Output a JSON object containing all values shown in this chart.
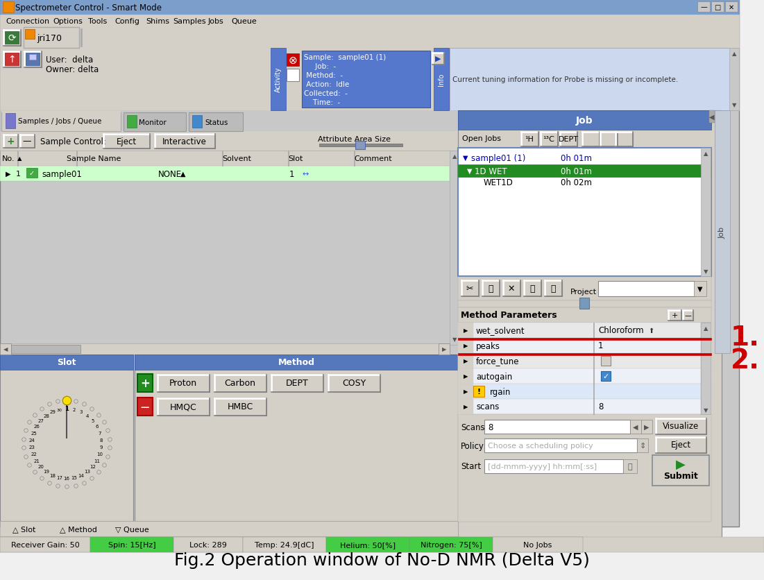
{
  "title_text": "Fig.2 Operation window of No-D NMR (Delta V5)",
  "title_fontsize": 18,
  "fig_bg": "#f0f0f0",
  "window_bg": "#d4d0c8",
  "title_bar_bg": "#a0a0c0",
  "title_bar_text": "Spectrometer Control - Smart Mode",
  "title_bar_color": "#000000",
  "menu_items": [
    "Connection",
    "Options",
    "Tools",
    "Config",
    "Shims",
    "Samples",
    "Jobs",
    "Queue"
  ],
  "status_bar_items": [
    {
      "text": "Receiver Gain: 50",
      "bg": "#d4d0c8",
      "fg": "#000000"
    },
    {
      "text": "Spin: 15[Hz]",
      "bg": "#44cc44",
      "fg": "#000000"
    },
    {
      "text": "Lock: 289",
      "bg": "#d4d0c8",
      "fg": "#000000"
    },
    {
      "text": "Temp: 24.9[dC]",
      "bg": "#d4d0c8",
      "fg": "#000000"
    },
    {
      "text": "Helium: 50[%]",
      "bg": "#44cc44",
      "fg": "#000000"
    },
    {
      "text": "Nitrogen: 75[%]",
      "bg": "#44cc44",
      "fg": "#000000"
    },
    {
      "text": "No Jobs",
      "bg": "#d4d0c8",
      "fg": "#000000"
    }
  ],
  "tabs": [
    "Samples / Jobs / Queue",
    "Monitor",
    "Status"
  ],
  "job_panel_title": "Job",
  "job_panel_bg": "#5588cc",
  "method_panel_title": "Method",
  "method_panel_bg": "#5588cc",
  "slot_panel_title": "Slot",
  "slot_panel_bg": "#5588cc",
  "sample_name": "sample01",
  "sample_slot": "1",
  "sample_solvent": "NONE",
  "method_params": [
    {
      "name": "wet_solvent",
      "value": "Chloroform",
      "has_arrow": true,
      "warning": false,
      "red_below": true
    },
    {
      "name": "peaks",
      "value": "1",
      "has_arrow": false,
      "warning": false,
      "red_below": true
    },
    {
      "name": "force_tune",
      "value": "checkbox_empty",
      "has_arrow": false,
      "warning": false,
      "red_below": false
    },
    {
      "name": "autogain",
      "value": "checkbox_checked",
      "has_arrow": false,
      "warning": false,
      "red_below": false
    },
    {
      "name": "rgain",
      "value": "",
      "has_arrow": false,
      "warning": true,
      "red_below": false
    },
    {
      "name": "scans",
      "value": "8",
      "has_arrow": false,
      "warning": false,
      "red_below": false
    }
  ],
  "info_text": "Current tuning information for Probe is missing or incomplete.",
  "user_text": "User:  delta\nOwner: delta",
  "sample_info_lines": [
    "Sample:  sample01 (1)",
    "     Job:  -",
    " Method:  -",
    " Action:  Idle",
    "Collected:  -",
    "    Time:  -"
  ],
  "scans_value": "8",
  "policy_placeholder": "Choose a scheduling policy",
  "start_placeholder": "[dd-mmm-yyyy] hh:mm[:ss]",
  "annotation_1": "1.",
  "annotation_2": "2.",
  "annotation_color": "#cc0000",
  "red_line_color": "#cc0000",
  "panel_blue": "#5577bb",
  "light_blue_bg": "#b8c8e0",
  "white": "#ffffff",
  "gray_bg": "#d4d0c8",
  "green_sel": "#228B22",
  "green_btn": "#228B22"
}
